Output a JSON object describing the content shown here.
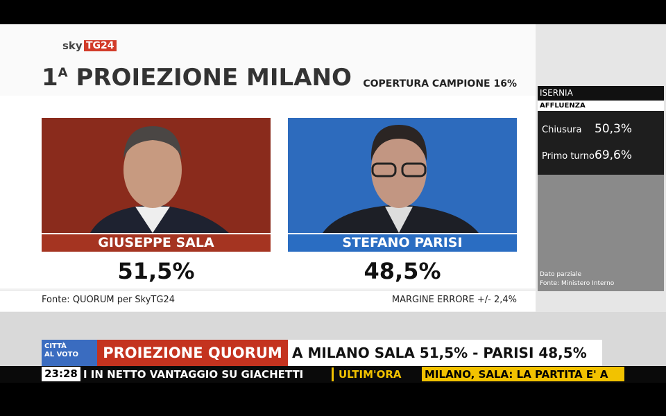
{
  "header": {
    "logo_sky": "sky",
    "logo_tg": "TG24",
    "title_number": "1",
    "title_sup": "A",
    "title_text": "PROIEZIONE MILANO",
    "coverage": "COPERTURA CAMPIONE 16%"
  },
  "candidates": [
    {
      "name": "GIUSEPPE SALA",
      "value": "51,5%"
    },
    {
      "name": "STEFANO PARISI",
      "value": "48,5%"
    }
  ],
  "footer": {
    "source": "Fonte: QUORUM per SkyTG24",
    "margin": "MARGINE ERRORE +/- 2,4%"
  },
  "side_panel": {
    "city": "ISERNIA",
    "section": "AFFLUENZA",
    "rows": [
      {
        "label": "Chiusura",
        "value": "50,3%"
      },
      {
        "label": "Primo turno",
        "value": "69,6%"
      }
    ],
    "note": [
      "Dato parziale",
      "Fonte: Ministero Interno"
    ]
  },
  "ticker": {
    "badge": [
      "CITTÀ",
      "AL VOTO"
    ],
    "tag": "PROIEZIONE QUORUM",
    "headline": "A MILANO SALA 51,5% - PARISI 48,5%",
    "time": "23:28",
    "crawl": [
      "I IN NETTO VANTAGGIO SU GIACHETTI",
      "ULTIM'ORA",
      "MILANO, SALA: LA PARTITA E' A"
    ]
  }
}
